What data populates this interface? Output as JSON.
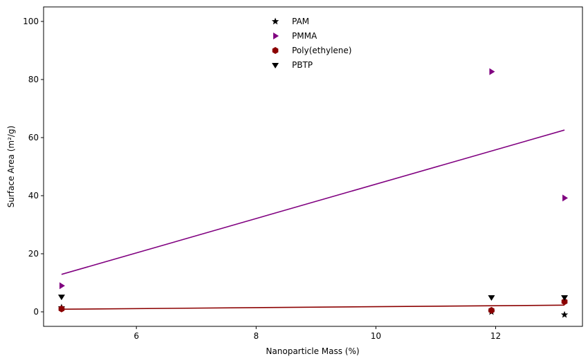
{
  "chart_data": {
    "type": "scatter",
    "title": "",
    "xlabel": "Nanoparticle Mass (%)",
    "ylabel": "Surface Area (m²/g)",
    "xlim": [
      4.45,
      13.45
    ],
    "ylim": [
      -5,
      105
    ],
    "xticks": [
      6,
      8,
      10,
      12
    ],
    "yticks": [
      0,
      20,
      40,
      60,
      80,
      100
    ],
    "xtick_labels": [
      "6",
      "8",
      "10",
      "12"
    ],
    "ytick_labels": [
      "0",
      "20",
      "40",
      "60",
      "80",
      "100"
    ],
    "grid": false,
    "legend_position": "top-center",
    "series": [
      {
        "name": "PAM",
        "marker": "star",
        "color": "#000000",
        "x": [
          4.75,
          11.93,
          13.15
        ],
        "y": [
          1.5,
          0.0,
          -1.0
        ]
      },
      {
        "name": "PMMA",
        "marker": "triangle-right",
        "color": "#800080",
        "x": [
          4.75,
          11.93,
          13.15
        ],
        "y": [
          9.0,
          82.7,
          39.2
        ]
      },
      {
        "name": "Poly(ethylene)",
        "marker": "hexagon",
        "color": "#8b0000",
        "x": [
          4.75,
          11.93,
          13.15
        ],
        "y": [
          1.0,
          0.5,
          3.5
        ]
      },
      {
        "name": "PBTP",
        "marker": "triangle-down",
        "color": "#000000",
        "x": [
          4.75,
          11.93,
          13.15
        ],
        "y": [
          5.2,
          5.0,
          5.0
        ]
      }
    ],
    "trendlines": [
      {
        "series": "PMMA",
        "color": "#800080",
        "x": [
          4.75,
          13.15
        ],
        "y": [
          12.9,
          62.6
        ]
      },
      {
        "series": "Poly(ethylene)",
        "color": "#8b0000",
        "x": [
          4.75,
          13.15
        ],
        "y": [
          0.9,
          2.3
        ]
      }
    ]
  }
}
